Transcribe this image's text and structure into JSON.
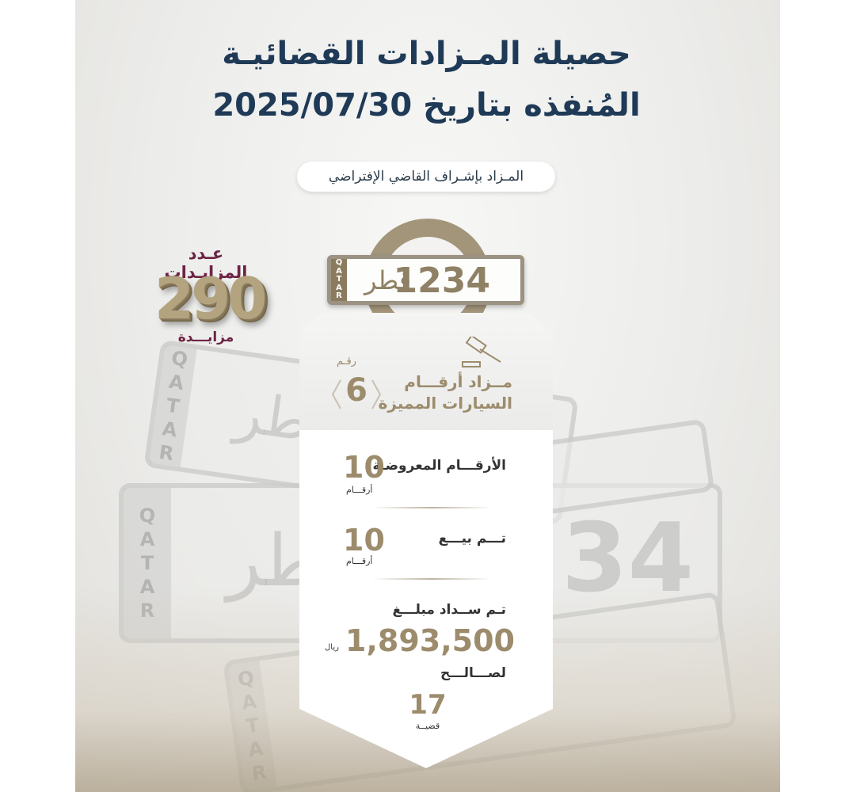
{
  "title": {
    "line1": "حصيلة المـزادات القضائيـة",
    "line2": "المُنفذه بتاريخ 2025/07/30"
  },
  "subtitle_pill": "المـزاد بإشـراف القاضي الإفتراضي",
  "plate": {
    "country_strip": "QATAR",
    "country_ar": "قطر",
    "number": "1234"
  },
  "bids": {
    "label": "عـدد المزايـدات",
    "value": "290",
    "unit": "مزايـــدة"
  },
  "auction": {
    "icon": "gavel-icon",
    "title_line1": "مــزاد أرقـــام",
    "title_line2": "السيارات المميزة",
    "number_label": "رقـم",
    "number": "6"
  },
  "stats": [
    {
      "label": "الأرقـــام المعروضـة",
      "value": "10",
      "unit": "أرقـــام"
    },
    {
      "label": "تـــم بيـــع",
      "value": "10",
      "unit": "أرقـــام"
    }
  ],
  "payment": {
    "label": "تـم ســداد مبلـــغ",
    "amount": "1,893,500",
    "currency": "ريال",
    "for_label": "لصـــالـــح",
    "cases": "17",
    "cases_unit": "قضيــة"
  },
  "background_plates": {
    "strip": "QATAR",
    "ar": "قطر",
    "num": "34"
  },
  "colors": {
    "title": "#1f3a57",
    "gold": "#9c8c6c",
    "maroon": "#6d2444"
  }
}
